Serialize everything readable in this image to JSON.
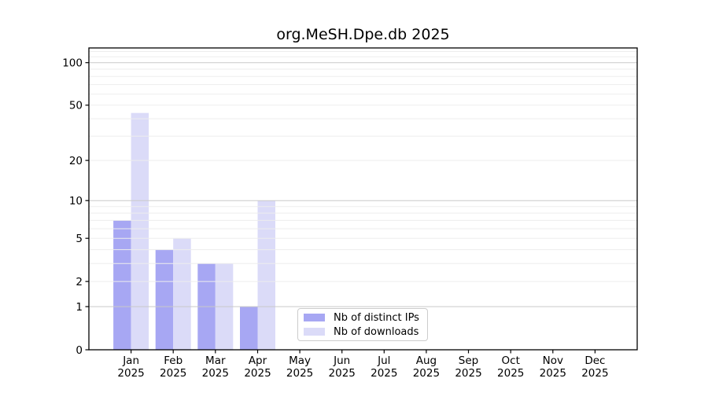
{
  "chart_data": {
    "type": "bar",
    "title": "org.MeSH.Dpe.db 2025",
    "yscale": "log10(1+x)",
    "categories": [
      "Jan",
      "Feb",
      "Mar",
      "Apr",
      "May",
      "Jun",
      "Jul",
      "Aug",
      "Sep",
      "Oct",
      "Nov",
      "Dec"
    ],
    "year_label": "2025",
    "series": [
      {
        "name": "Nb of distinct IPs",
        "color": "#a7a7f3",
        "values": [
          7,
          4,
          3,
          1,
          0,
          0,
          0,
          0,
          0,
          0,
          0,
          0
        ]
      },
      {
        "name": "Nb of downloads",
        "color": "#dbdbf8",
        "values": [
          44,
          5,
          3,
          10,
          0,
          0,
          0,
          0,
          0,
          0,
          0,
          0
        ]
      }
    ],
    "yticks": [
      0,
      1,
      2,
      5,
      10,
      20,
      50,
      100
    ],
    "ylim": [
      0,
      127
    ],
    "xlabel": "",
    "ylabel": "",
    "grid": "on",
    "grid_above_bars": true,
    "legend_position": "lower-center-inside"
  },
  "colors": {
    "background": "#ffffff",
    "axis": "#000000",
    "tick_label": "#000000",
    "grid_minor": "#ededed",
    "grid_major": "#c9c9c9",
    "legend_border": "#cccccc"
  }
}
